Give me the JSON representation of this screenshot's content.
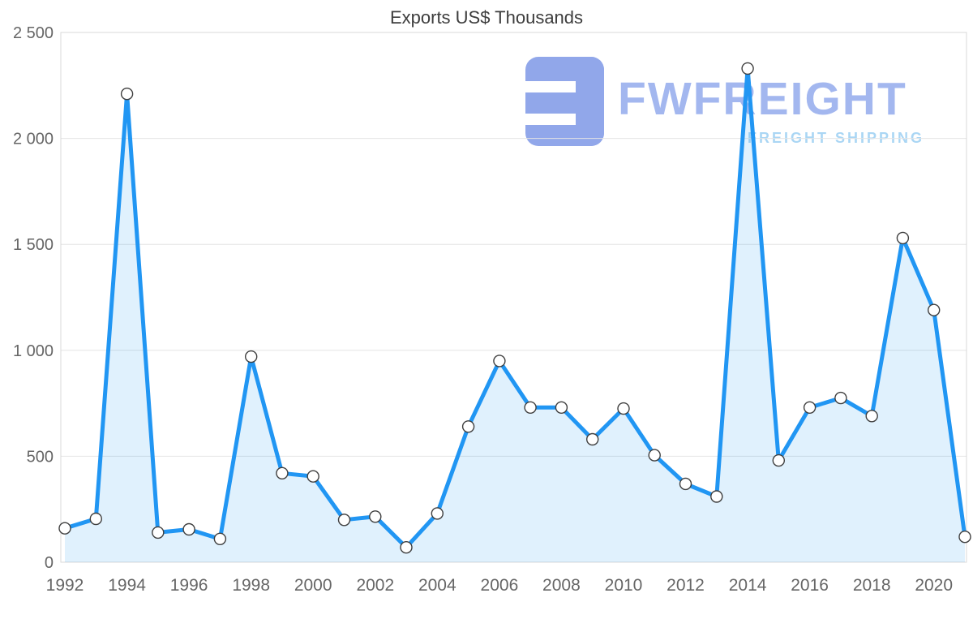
{
  "watermark": {
    "brand": "FWFREIGHT",
    "subtitle": "FREIGHT SHIPPING",
    "logo_color": "#8ca3e9",
    "brand_color": "#9fb4ef",
    "subtitle_color": "#a6d4f4"
  },
  "chart_data": {
    "type": "area",
    "title": "Exports US$ Thousands",
    "x": [
      1992,
      1993,
      1994,
      1995,
      1996,
      1997,
      1998,
      1999,
      2000,
      2001,
      2002,
      2003,
      2004,
      2005,
      2006,
      2007,
      2008,
      2009,
      2010,
      2011,
      2012,
      2013,
      2014,
      2015,
      2016,
      2017,
      2018,
      2019,
      2020,
      2021
    ],
    "values": [
      160,
      205,
      2210,
      140,
      155,
      110,
      970,
      420,
      405,
      200,
      215,
      70,
      230,
      640,
      950,
      730,
      730,
      580,
      725,
      505,
      370,
      310,
      2330,
      480,
      730,
      775,
      690,
      1530,
      1190,
      120
    ],
    "ylim": [
      0,
      2500
    ],
    "yticks": {
      "values": [
        0,
        500,
        1000,
        1500,
        2000,
        2500
      ],
      "labels": [
        "0",
        "500",
        "1 000",
        "1 500",
        "2 000",
        "2 500"
      ]
    },
    "xtick_labels": [
      "1992",
      "1994",
      "1996",
      "1998",
      "2000",
      "2002",
      "2004",
      "2006",
      "2008",
      "2010",
      "2012",
      "2014",
      "2016",
      "2018",
      "2020"
    ],
    "grid": true,
    "legend": "none",
    "colors": {
      "line": "#2196f3",
      "area": "rgba(36,153,244,0.14)",
      "marker_fill": "#ffffff",
      "marker_stroke": "#3f3f3f",
      "grid": "#e4e4e4",
      "axis_border": "#d8d8d8",
      "tick_label": "#666666",
      "title": "#3d3d3d"
    }
  }
}
